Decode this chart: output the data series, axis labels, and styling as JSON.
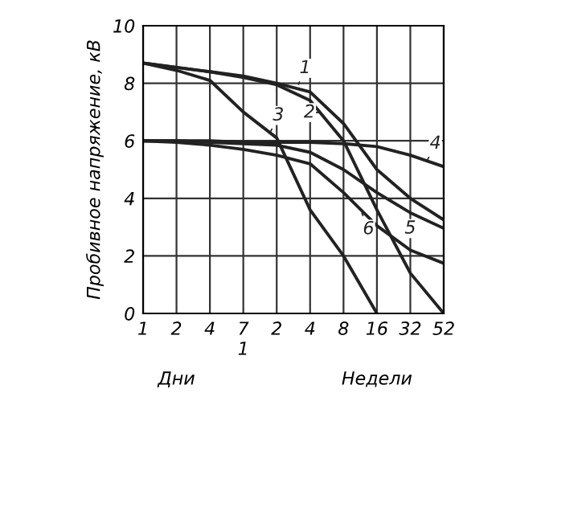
{
  "chart_data": {
    "type": "line",
    "ylabel": "Пробивное напряжение, кВ",
    "categories": [
      "1",
      "2",
      "4",
      "7\n1",
      "2",
      "4",
      "8",
      "16",
      "32",
      "52"
    ],
    "series": [
      {
        "name": "1",
        "color": "#222222",
        "values": [
          8.7,
          8.55,
          8.4,
          8.25,
          8.0,
          7.7,
          6.6,
          5.0,
          4.0,
          3.25
        ]
      },
      {
        "name": "2",
        "color": "#222222",
        "values": [
          8.7,
          8.55,
          8.4,
          8.2,
          7.95,
          7.4,
          6.0,
          3.6,
          1.4,
          0
        ]
      },
      {
        "name": "3",
        "color": "#222222",
        "values": [
          8.7,
          8.45,
          8.1,
          7.0,
          6.1,
          3.6,
          2.0,
          0,
          null,
          null
        ]
      },
      {
        "name": "4",
        "color": "#222222",
        "values": [
          6.0,
          6.0,
          6.0,
          5.95,
          5.95,
          5.95,
          5.9,
          5.8,
          5.5,
          5.1
        ]
      },
      {
        "name": "5",
        "color": "#222222",
        "values": [
          6.0,
          6.0,
          5.95,
          5.9,
          5.85,
          5.6,
          5.0,
          4.2,
          3.5,
          2.96
        ]
      },
      {
        "name": "6",
        "color": "#222222",
        "values": [
          6.0,
          5.95,
          5.85,
          5.7,
          5.5,
          5.2,
          4.2,
          3.05,
          2.2,
          1.74
        ]
      }
    ],
    "ylim": [
      0,
      10
    ],
    "yticks": [
      0,
      2,
      4,
      6,
      8,
      10
    ],
    "grid": true,
    "annotations": [
      "Дни",
      "Недели"
    ]
  }
}
